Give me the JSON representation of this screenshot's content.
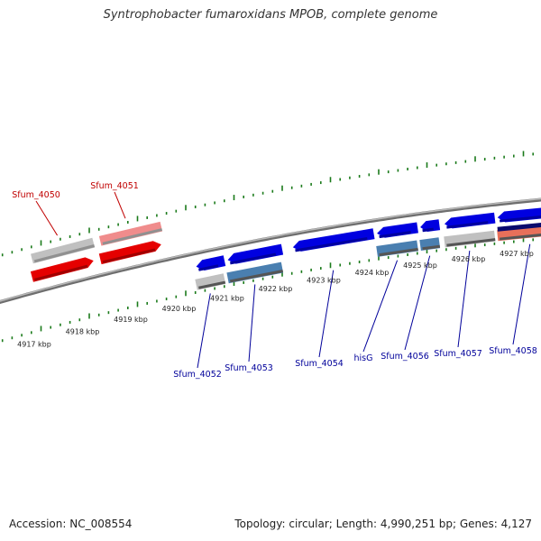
{
  "title": "Syntrophobacter fumaroxidans MPOB, complete genome",
  "accession_text": "Accession: NC_008554",
  "topology_text": "Topology: circular; Length: 4,990,251 bp; Genes: 4,127",
  "colors": {
    "forward_gene": "#e50000",
    "forward_gene_light": "#f08c8c",
    "reverse_gene": "#0000e0",
    "reverse_gene_light": "#4a7fb0",
    "gene_label_top": "#c00000",
    "gene_label_bottom": "#00009a",
    "backbone": "#888888",
    "ticks": "#1a7a1a"
  },
  "scale": {
    "unit": "kbp",
    "labels": [
      "4917 kbp",
      "4918 kbp",
      "4919 kbp",
      "4920 kbp",
      "4921 kbp",
      "4922 kbp",
      "4923 kbp",
      "4924 kbp",
      "4925 kbp",
      "4926 kbp",
      "4927 kbp"
    ]
  },
  "forward_genes": [
    {
      "name": "Sfum_4050",
      "strand": "+",
      "start_kbp": 4916.93,
      "end_kbp": 4918.25
    },
    {
      "name": "Sfum_4051",
      "strand": "+",
      "start_kbp": 4918.35,
      "end_kbp": 4919.65
    }
  ],
  "reverse_genes": [
    {
      "name": "Sfum_4052",
      "strand": "-",
      "start_kbp": 4920.35,
      "end_kbp": 4920.95
    },
    {
      "name": "Sfum_4053",
      "strand": "-",
      "start_kbp": 4921.0,
      "end_kbp": 4922.15
    },
    {
      "name": "Sfum_4054",
      "strand": "-",
      "start_kbp": 4922.35,
      "end_kbp": 4924.05
    },
    {
      "name": "hisG",
      "strand": "-",
      "start_kbp": 4924.1,
      "end_kbp": 4924.95
    },
    {
      "name": "Sfum_4056",
      "strand": "-",
      "start_kbp": 4925.0,
      "end_kbp": 4925.4
    },
    {
      "name": "Sfum_4057",
      "strand": "-",
      "start_kbp": 4925.5,
      "end_kbp": 4926.55
    },
    {
      "name": "Sfum_4058",
      "strand": "-",
      "start_kbp": 4926.6,
      "end_kbp": 4927.95
    }
  ]
}
